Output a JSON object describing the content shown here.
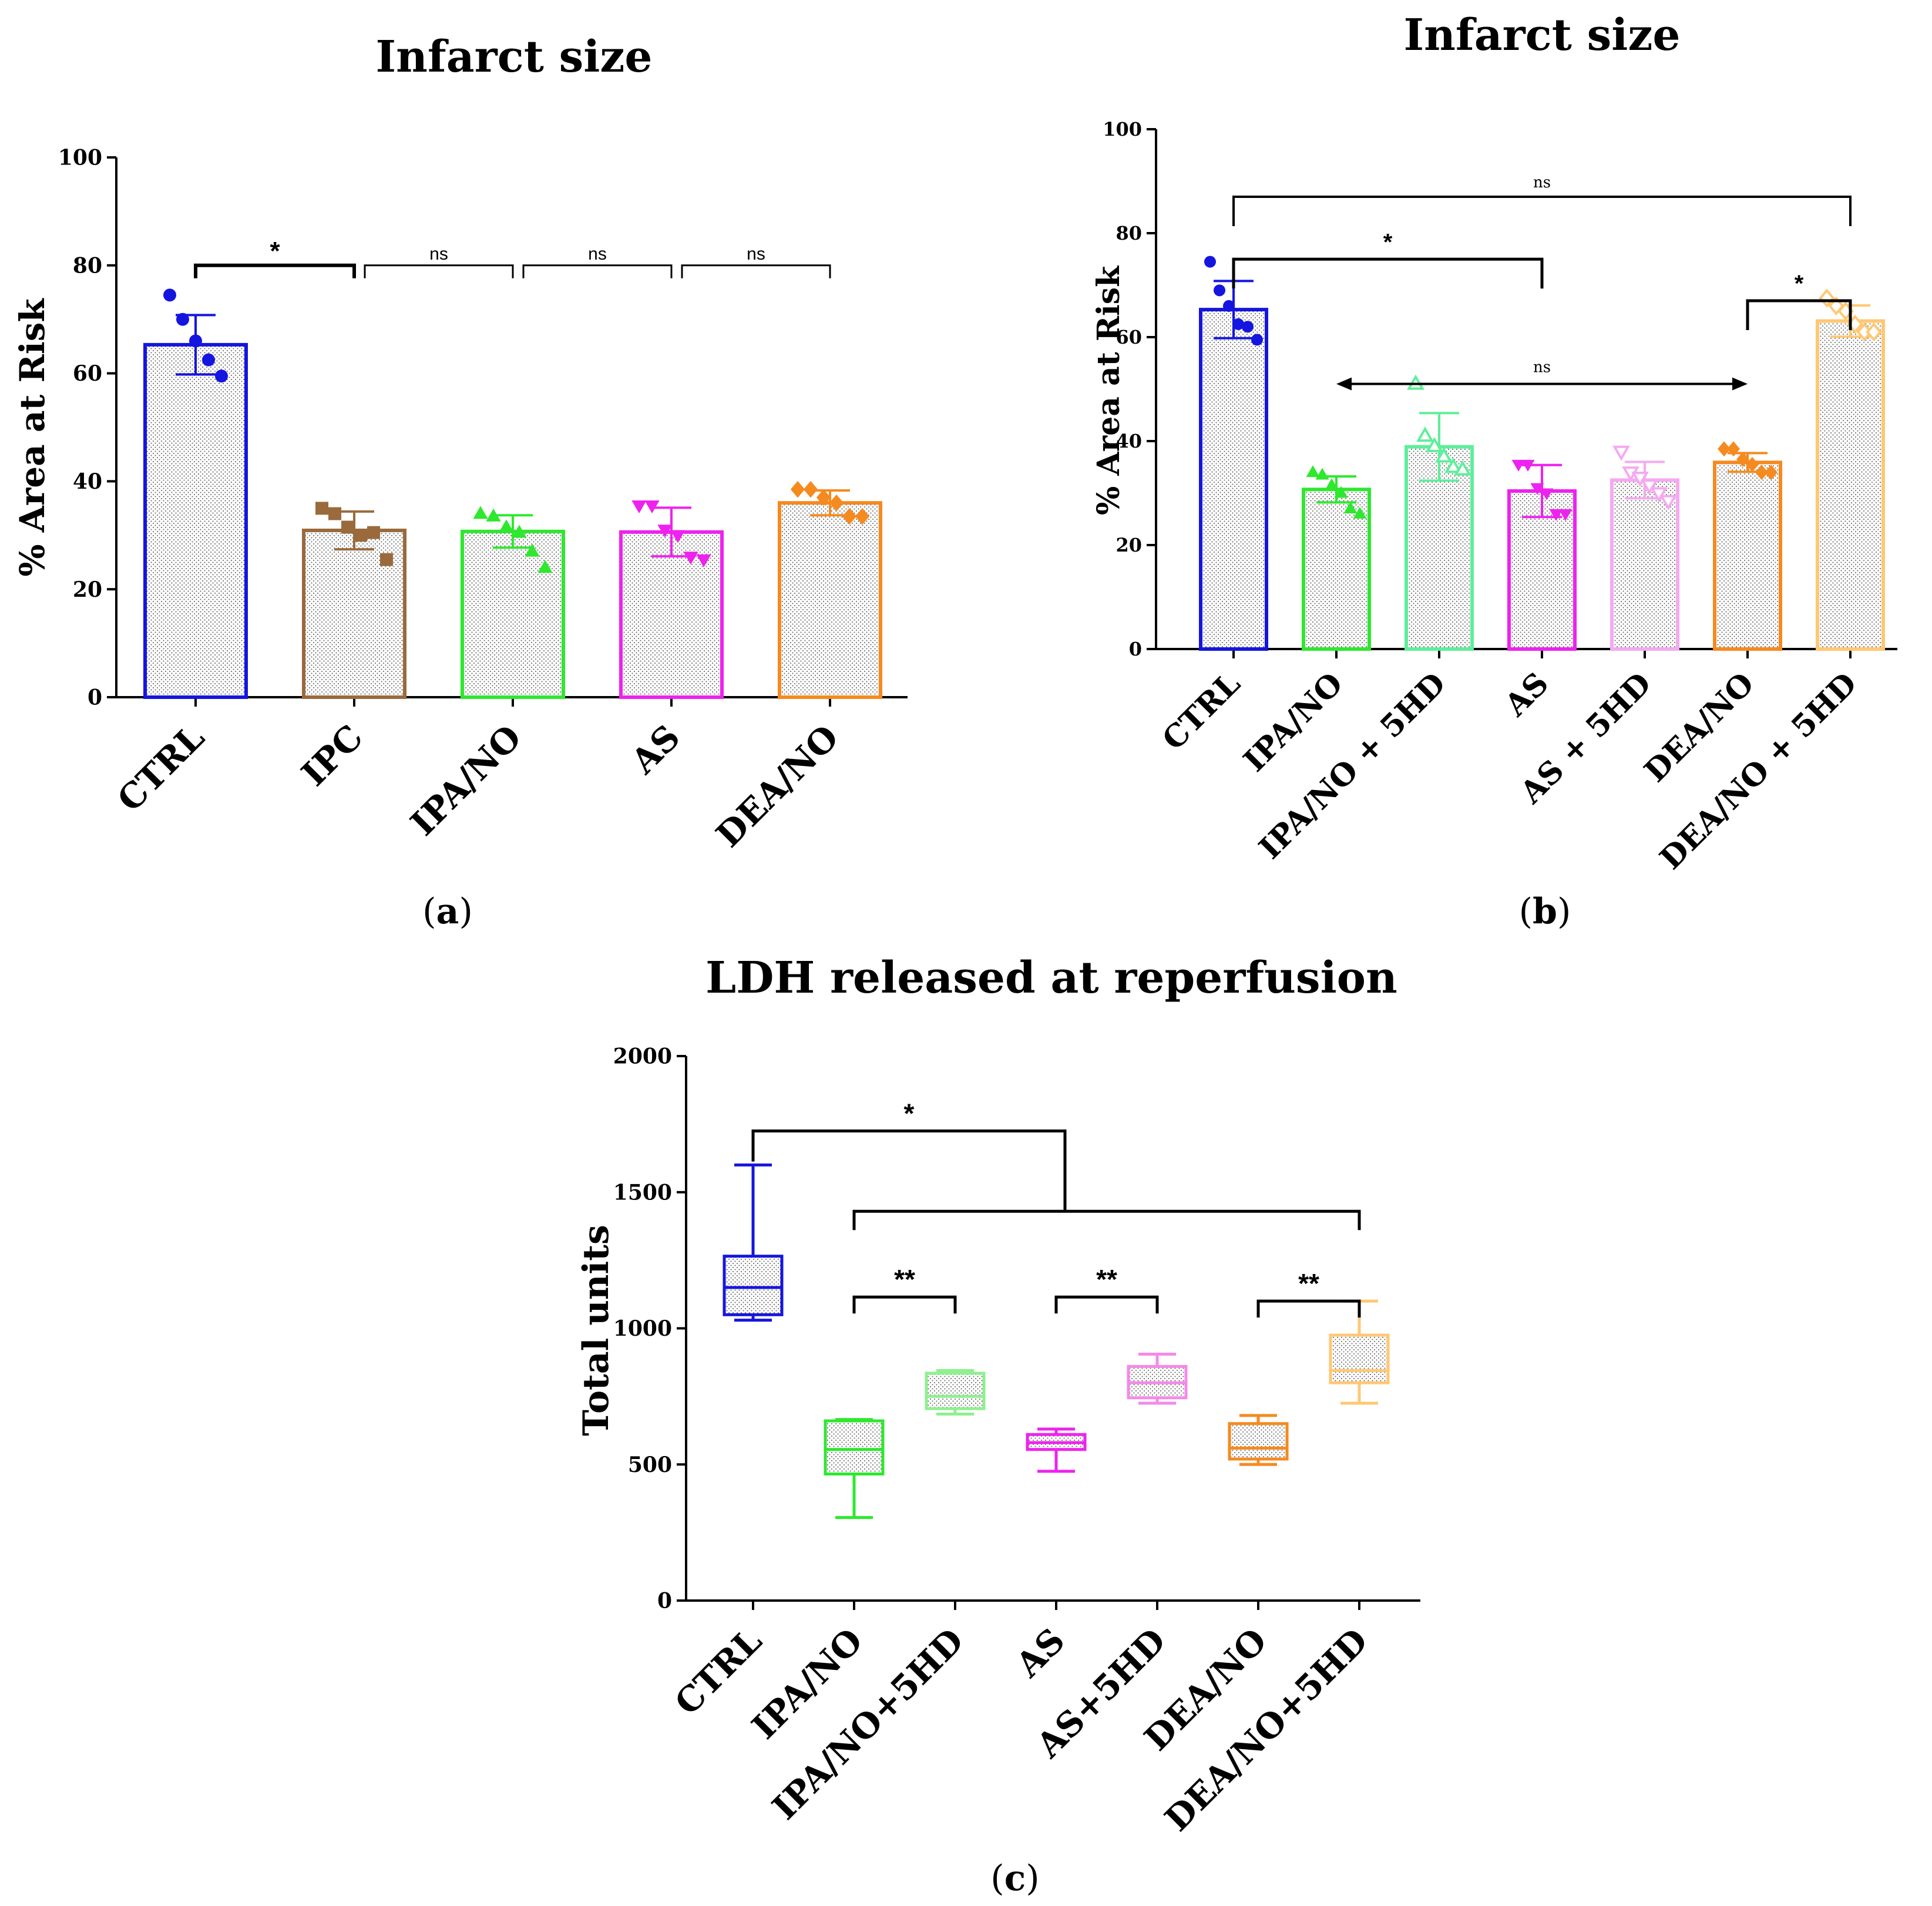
{
  "chart_data": [
    {
      "panel_label": "a",
      "type": "bar",
      "title": "Infarct size",
      "ylabel": "% Area at Risk",
      "ylim": [
        0,
        100
      ],
      "yticks": [
        0,
        20,
        40,
        60,
        80,
        100
      ],
      "categories": [
        "CTRL",
        "IPC",
        "IPA/NO",
        "AS",
        "DEA/NO"
      ],
      "colors": [
        "#1515e0",
        "#9a6a3c",
        "#2ee82e",
        "#ee22ee",
        "#f58a1f"
      ],
      "markers": [
        "circle",
        "square",
        "triangle-up",
        "triangle-down",
        "diamond"
      ],
      "means": [
        65.3,
        30.9,
        30.7,
        30.6,
        36.0
      ],
      "errors": [
        5.5,
        3.5,
        3.0,
        4.5,
        2.3
      ],
      "points": [
        [
          74.5,
          70.0,
          66.0,
          62.5,
          59.5
        ],
        [
          35.0,
          34.0,
          31.5,
          30.0,
          30.5,
          25.5
        ],
        [
          34.0,
          33.5,
          31.5,
          30.5,
          27.0,
          24.0
        ],
        [
          35.5,
          35.5,
          31.0,
          30.0,
          26.0,
          25.5
        ],
        [
          38.5,
          38.5,
          37.0,
          36.0,
          33.5,
          33.5
        ]
      ],
      "significance": [
        {
          "from": 0,
          "to": 1,
          "label": "*"
        },
        {
          "from": 1,
          "to": 2,
          "label": "ns"
        },
        {
          "from": 2,
          "to": 3,
          "label": "ns"
        },
        {
          "from": 3,
          "to": 4,
          "label": "ns"
        }
      ]
    },
    {
      "panel_label": "b",
      "type": "bar",
      "title": "Infarct size",
      "ylabel": "% Area at Risk",
      "ylim": [
        0,
        100
      ],
      "yticks": [
        0,
        20,
        40,
        60,
        80,
        100
      ],
      "categories": [
        "CTRL",
        "IPA/NO",
        "IPA/NO + 5HD",
        "AS",
        "AS + 5HD",
        "DEA/NO",
        "DEA/NO + 5HD"
      ],
      "colors": [
        "#1515e0",
        "#2ee82e",
        "#5fee9a",
        "#ee22ee",
        "#f4aaf0",
        "#f58a1f",
        "#ffc873"
      ],
      "markers": [
        "circle",
        "triangle-up",
        "triangle-up-open",
        "triangle-down",
        "triangle-down-open",
        "diamond",
        "diamond-open"
      ],
      "means": [
        65.3,
        30.7,
        38.9,
        30.4,
        32.5,
        35.9,
        63.1
      ],
      "errors": [
        5.5,
        2.5,
        6.5,
        5.0,
        3.5,
        1.8,
        3.0
      ],
      "points": [
        [
          74.5,
          69.0,
          66.0,
          62.5,
          62.0,
          59.5
        ],
        [
          34.0,
          33.5,
          31.5,
          30.0,
          27.0,
          26.0
        ],
        [
          51.0,
          41.0,
          39.0,
          37.0,
          35.0,
          34.5
        ],
        [
          35.5,
          35.5,
          31.0,
          30.0,
          26.0,
          26.0
        ],
        [
          38.0,
          34.0,
          33.0,
          31.5,
          30.0,
          28.5
        ],
        [
          38.5,
          38.5,
          36.5,
          35.5,
          34.0,
          34.0
        ],
        [
          67.5,
          66.0,
          65.0,
          62.5,
          61.0,
          61.0
        ]
      ],
      "brackets": [
        {
          "from": 0,
          "to": 6,
          "y": 87,
          "label": "ns",
          "type": "bracket"
        },
        {
          "from": 0,
          "to": 3,
          "y": 75,
          "label": "*",
          "type": "bracket"
        },
        {
          "from": 5,
          "to": 6,
          "y": 67,
          "label": "*",
          "type": "bracket"
        },
        {
          "from": 1,
          "to": 5,
          "y": 51,
          "label": "ns",
          "type": "arrow"
        }
      ]
    },
    {
      "panel_label": "c",
      "type": "box",
      "title": "LDH released at reperfusion",
      "ylabel": "Total units",
      "ylim": [
        0,
        2000
      ],
      "yticks": [
        0,
        500,
        1000,
        1500,
        2000
      ],
      "categories": [
        "CTRL",
        "IPA/NO",
        "IPA/NO+5HD",
        "AS",
        "AS+5HD",
        "DEA/NO",
        "DEA/NO+5HD"
      ],
      "colors": [
        "#1515e0",
        "#2ee82e",
        "#8ff08f",
        "#ee22ee",
        "#f48ae8",
        "#f58a1f",
        "#ffc873"
      ],
      "boxes": [
        {
          "min": 1030,
          "q1": 1050,
          "median": 1150,
          "q3": 1265,
          "max": 1600
        },
        {
          "min": 305,
          "q1": 465,
          "median": 555,
          "q3": 660,
          "max": 665
        },
        {
          "min": 685,
          "q1": 705,
          "median": 750,
          "q3": 835,
          "max": 845
        },
        {
          "min": 475,
          "q1": 555,
          "median": 580,
          "q3": 610,
          "max": 630
        },
        {
          "min": 725,
          "q1": 745,
          "median": 800,
          "q3": 860,
          "max": 905
        },
        {
          "min": 500,
          "q1": 520,
          "median": 560,
          "q3": 650,
          "max": 680
        },
        {
          "min": 725,
          "q1": 800,
          "median": 845,
          "q3": 975,
          "max": 1100
        }
      ],
      "brackets": [
        {
          "type": "group",
          "label": "*"
        },
        {
          "from": 1,
          "to": 2,
          "y": 1115,
          "label": "**"
        },
        {
          "from": 3,
          "to": 4,
          "y": 1115,
          "label": "**"
        },
        {
          "from": 5,
          "to": 6,
          "y": 1100,
          "label": "**"
        }
      ]
    }
  ]
}
